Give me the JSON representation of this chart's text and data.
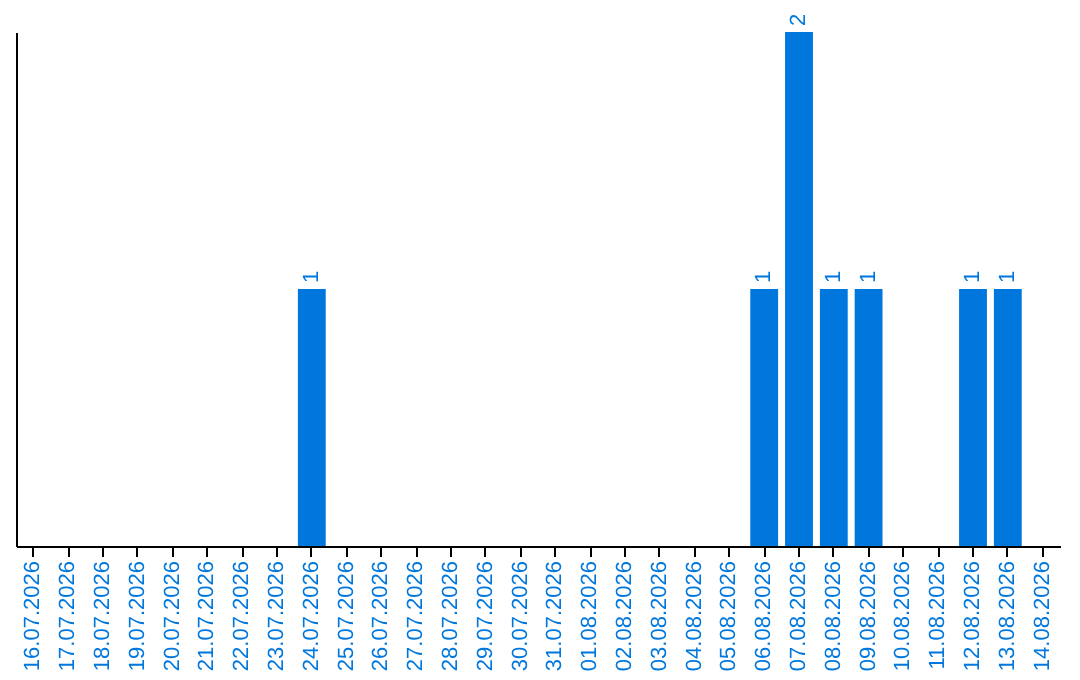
{
  "chart_data": {
    "type": "bar",
    "categories": [
      "16.07.2026",
      "17.07.2026",
      "18.07.2026",
      "19.07.2026",
      "20.07.2026",
      "21.07.2026",
      "22.07.2026",
      "23.07.2026",
      "24.07.2026",
      "25.07.2026",
      "26.07.2026",
      "27.07.2026",
      "28.07.2026",
      "29.07.2026",
      "30.07.2026",
      "31.07.2026",
      "01.08.2026",
      "02.08.2026",
      "03.08.2026",
      "04.08.2026",
      "05.08.2026",
      "06.08.2026",
      "07.08.2026",
      "08.08.2026",
      "09.08.2026",
      "10.08.2026",
      "11.08.2026",
      "12.08.2026",
      "13.08.2026",
      "14.08.2026"
    ],
    "values": [
      0,
      0,
      0,
      0,
      0,
      0,
      0,
      0,
      1,
      0,
      0,
      0,
      0,
      0,
      0,
      0,
      0,
      0,
      0,
      0,
      0,
      1,
      2,
      1,
      1,
      0,
      0,
      1,
      1,
      0
    ],
    "value_labels": [
      null,
      null,
      null,
      null,
      null,
      null,
      null,
      null,
      "1",
      null,
      null,
      null,
      null,
      null,
      null,
      null,
      null,
      null,
      null,
      null,
      null,
      "1",
      "2",
      "1",
      "1",
      null,
      null,
      "1",
      "1",
      null
    ],
    "color": "#0077dd",
    "tick_labels": "x"
  }
}
